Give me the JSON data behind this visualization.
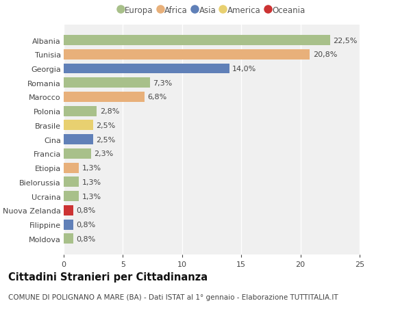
{
  "countries": [
    "Albania",
    "Tunisia",
    "Georgia",
    "Romania",
    "Marocco",
    "Polonia",
    "Brasile",
    "Cina",
    "Francia",
    "Etiopia",
    "Bielorussia",
    "Ucraina",
    "Nuova Zelanda",
    "Filippine",
    "Moldova"
  ],
  "values": [
    22.5,
    20.8,
    14.0,
    7.3,
    6.8,
    2.8,
    2.5,
    2.5,
    2.3,
    1.3,
    1.3,
    1.3,
    0.8,
    0.8,
    0.8
  ],
  "labels": [
    "22,5%",
    "20,8%",
    "14,0%",
    "7,3%",
    "6,8%",
    "2,8%",
    "2,5%",
    "2,5%",
    "2,3%",
    "1,3%",
    "1,3%",
    "1,3%",
    "0,8%",
    "0,8%",
    "0,8%"
  ],
  "continents": [
    "Europa",
    "Africa",
    "Asia",
    "Europa",
    "Africa",
    "Europa",
    "America",
    "Asia",
    "Europa",
    "Africa",
    "Europa",
    "Europa",
    "Oceania",
    "Asia",
    "Europa"
  ],
  "continent_colors": {
    "Europa": "#a8c08a",
    "Africa": "#e8b07a",
    "Asia": "#6080b8",
    "America": "#e8d070",
    "Oceania": "#cc3333"
  },
  "legend_order": [
    "Europa",
    "Africa",
    "Asia",
    "America",
    "Oceania"
  ],
  "xlim": [
    0,
    25
  ],
  "xticks": [
    0,
    5,
    10,
    15,
    20,
    25
  ],
  "title": "Cittadini Stranieri per Cittadinanza",
  "subtitle": "COMUNE DI POLIGNANO A MARE (BA) - Dati ISTAT al 1° gennaio - Elaborazione TUTTITALIA.IT",
  "bg_color": "#ffffff",
  "plot_bg_color": "#f0f0f0",
  "grid_color": "#ffffff",
  "label_fontsize": 8,
  "value_fontsize": 8,
  "title_fontsize": 10.5,
  "subtitle_fontsize": 7.5
}
